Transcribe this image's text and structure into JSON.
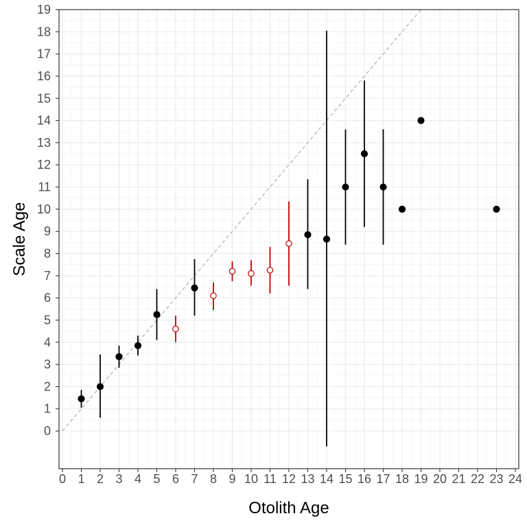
{
  "chart_data": {
    "type": "scatter",
    "title": "",
    "xlabel": "Otolith Age",
    "ylabel": "Scale Age",
    "xlim": [
      0,
      24
    ],
    "ylim": [
      -1.7,
      19
    ],
    "x_ticks": [
      0,
      1,
      2,
      3,
      4,
      5,
      6,
      7,
      8,
      9,
      10,
      11,
      12,
      13,
      14,
      15,
      16,
      17,
      18,
      19,
      20,
      21,
      22,
      23,
      24
    ],
    "y_ticks": [
      0,
      1,
      2,
      3,
      4,
      5,
      6,
      7,
      8,
      9,
      10,
      11,
      12,
      13,
      14,
      15,
      16,
      17,
      18,
      19
    ],
    "grid": true,
    "reference_line": {
      "type": "1:1 line",
      "style": "dashed",
      "color": "#b3b3b3"
    },
    "legend": "none",
    "series": [
      {
        "marker": "filled",
        "color": "#000000",
        "points": [
          {
            "x": 1,
            "y": 1.45,
            "low": 1.05,
            "high": 1.85
          },
          {
            "x": 2,
            "y": 2.0,
            "low": 0.6,
            "high": 3.45
          },
          {
            "x": 3,
            "y": 3.35,
            "low": 2.85,
            "high": 3.85
          },
          {
            "x": 4,
            "y": 3.85,
            "low": 3.4,
            "high": 4.3
          },
          {
            "x": 5,
            "y": 5.25,
            "low": 4.1,
            "high": 6.4
          },
          {
            "x": 7,
            "y": 6.45,
            "low": 5.2,
            "high": 7.75
          },
          {
            "x": 13,
            "y": 8.85,
            "low": 6.4,
            "high": 11.35
          },
          {
            "x": 14,
            "y": 8.65,
            "low": -0.7,
            "high": 18.05
          },
          {
            "x": 15,
            "y": 11.0,
            "low": 8.4,
            "high": 13.6
          },
          {
            "x": 16,
            "y": 12.5,
            "low": 9.2,
            "high": 15.8
          },
          {
            "x": 17,
            "y": 11.0,
            "low": 8.4,
            "high": 13.6
          },
          {
            "x": 18,
            "y": 10.0,
            "low": null,
            "high": null
          },
          {
            "x": 19,
            "y": 14.0,
            "low": null,
            "high": null
          },
          {
            "x": 23,
            "y": 10.0,
            "low": null,
            "high": null
          }
        ]
      },
      {
        "marker": "open",
        "color": "#c00000",
        "points": [
          {
            "x": 6,
            "y": 4.6,
            "low": 4.0,
            "high": 5.2
          },
          {
            "x": 8,
            "y": 6.1,
            "low": 5.45,
            "high": 6.7
          },
          {
            "x": 9,
            "y": 7.2,
            "low": 6.75,
            "high": 7.65
          },
          {
            "x": 10,
            "y": 7.1,
            "low": 6.55,
            "high": 7.7
          },
          {
            "x": 11,
            "y": 7.25,
            "low": 6.2,
            "high": 8.3
          },
          {
            "x": 12,
            "y": 8.45,
            "low": 6.55,
            "high": 10.35
          }
        ]
      }
    ]
  }
}
